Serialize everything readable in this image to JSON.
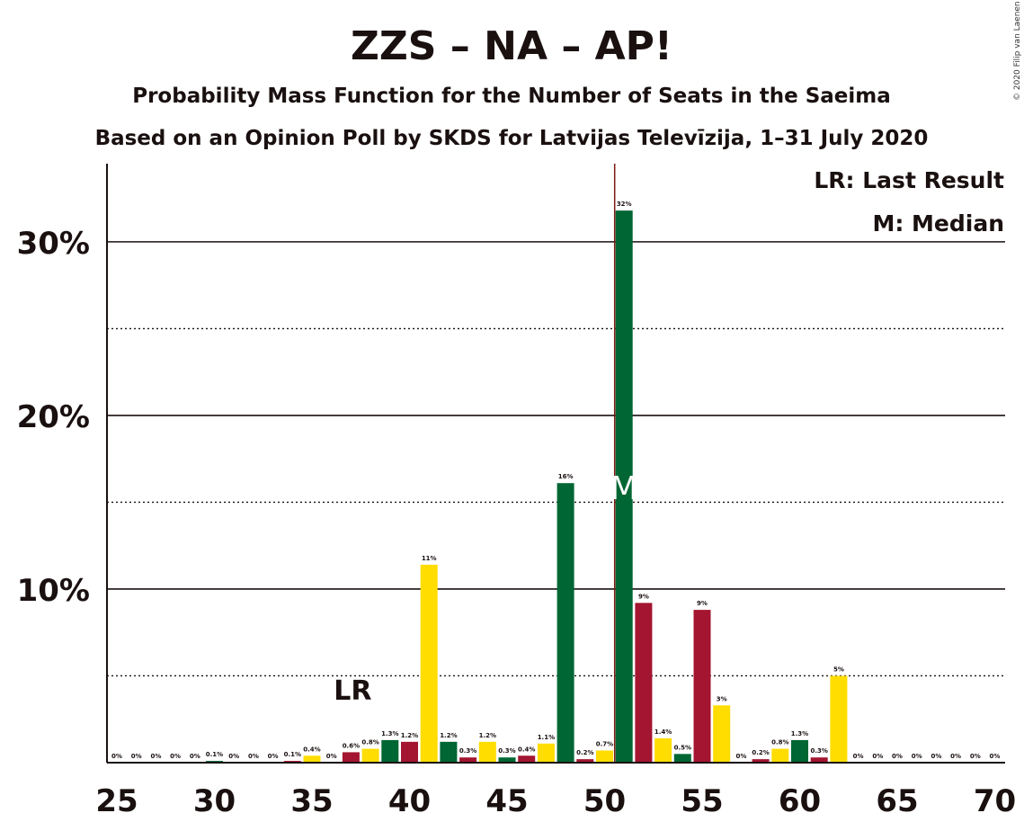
{
  "chart_data": {
    "type": "bar",
    "title": "ZZS – NA – AP!",
    "subtitle": "Probability Mass Function for the Number of Seats in the Saeima",
    "subtitle2": "Based on an Opinion Poll by SKDS for Latvijas Televīzija, 1–31 July 2020",
    "copyright": "© 2020 Filip van Laenen",
    "legend": [
      "LR: Last Result",
      "M: Median"
    ],
    "legend_position": "top-right",
    "lr_label": "LR",
    "last_result": 37,
    "median": 51,
    "median_marker": "M",
    "ylim": [
      0,
      34.5
    ],
    "yticks": [
      10,
      20,
      30
    ],
    "ytick_labels": [
      "10%",
      "20%",
      "30%"
    ],
    "dotted_lines": [
      5,
      15,
      25
    ],
    "xlim": [
      25,
      70
    ],
    "xticks": [
      25,
      30,
      35,
      40,
      45,
      50,
      55,
      60,
      65,
      70
    ],
    "colors": {
      "green": "#006633",
      "red": "#A31530",
      "yellow": "#FFDD00",
      "median_line": "#7A1A10"
    },
    "bars": [
      {
        "seats": 25,
        "value": 0,
        "label": "0%",
        "color": "green"
      },
      {
        "seats": 26,
        "value": 0,
        "label": "0%",
        "color": "red"
      },
      {
        "seats": 27,
        "value": 0,
        "label": "0%",
        "color": "yellow"
      },
      {
        "seats": 28,
        "value": 0,
        "label": "0%",
        "color": "green"
      },
      {
        "seats": 29,
        "value": 0,
        "label": "0%",
        "color": "red"
      },
      {
        "seats": 30,
        "value": 0.1,
        "label": "0.1%",
        "color": "green"
      },
      {
        "seats": 31,
        "value": 0,
        "label": "0%",
        "color": "red"
      },
      {
        "seats": 32,
        "value": 0,
        "label": "0%",
        "color": "yellow"
      },
      {
        "seats": 33,
        "value": 0,
        "label": "0%",
        "color": "green"
      },
      {
        "seats": 34,
        "value": 0.1,
        "label": "0.1%",
        "color": "red"
      },
      {
        "seats": 35,
        "value": 0.4,
        "label": "0.4%",
        "color": "yellow"
      },
      {
        "seats": 36,
        "value": 0,
        "label": "0%",
        "color": "green"
      },
      {
        "seats": 37,
        "value": 0.6,
        "label": "0.6%",
        "color": "red"
      },
      {
        "seats": 38,
        "value": 0.8,
        "label": "0.8%",
        "color": "yellow"
      },
      {
        "seats": 39,
        "value": 1.3,
        "label": "1.3%",
        "color": "green"
      },
      {
        "seats": 40,
        "value": 1.2,
        "label": "1.2%",
        "color": "red"
      },
      {
        "seats": 41,
        "value": 11.4,
        "label": "11%",
        "color": "yellow"
      },
      {
        "seats": 42,
        "value": 1.2,
        "label": "1.2%",
        "color": "green"
      },
      {
        "seats": 43,
        "value": 0.3,
        "label": "0.3%",
        "color": "red"
      },
      {
        "seats": 44,
        "value": 1.2,
        "label": "1.2%",
        "color": "yellow"
      },
      {
        "seats": 45,
        "value": 0.3,
        "label": "0.3%",
        "color": "green"
      },
      {
        "seats": 46,
        "value": 0.4,
        "label": "0.4%",
        "color": "red"
      },
      {
        "seats": 47,
        "value": 1.1,
        "label": "1.1%",
        "color": "yellow"
      },
      {
        "seats": 48,
        "value": 16.1,
        "label": "16%",
        "color": "green"
      },
      {
        "seats": 49,
        "value": 0.2,
        "label": "0.2%",
        "color": "red"
      },
      {
        "seats": 50,
        "value": 0.7,
        "label": "0.7%",
        "color": "yellow"
      },
      {
        "seats": 51,
        "value": 31.8,
        "label": "32%",
        "color": "green"
      },
      {
        "seats": 52,
        "value": 9.2,
        "label": "9%",
        "color": "red"
      },
      {
        "seats": 53,
        "value": 1.4,
        "label": "1.4%",
        "color": "yellow"
      },
      {
        "seats": 54,
        "value": 0.5,
        "label": "0.5%",
        "color": "green"
      },
      {
        "seats": 55,
        "value": 8.8,
        "label": "9%",
        "color": "red"
      },
      {
        "seats": 56,
        "value": 3.3,
        "label": "3%",
        "color": "yellow"
      },
      {
        "seats": 57,
        "value": 0,
        "label": "0%",
        "color": "green"
      },
      {
        "seats": 58,
        "value": 0.2,
        "label": "0.2%",
        "color": "red"
      },
      {
        "seats": 59,
        "value": 0.8,
        "label": "0.8%",
        "color": "yellow"
      },
      {
        "seats": 60,
        "value": 1.3,
        "label": "1.3%",
        "color": "green"
      },
      {
        "seats": 61,
        "value": 0.3,
        "label": "0.3%",
        "color": "red"
      },
      {
        "seats": 62,
        "value": 5.0,
        "label": "5%",
        "color": "yellow"
      },
      {
        "seats": 63,
        "value": 0,
        "label": "0%",
        "color": "green"
      },
      {
        "seats": 64,
        "value": 0,
        "label": "0%",
        "color": "red"
      },
      {
        "seats": 65,
        "value": 0,
        "label": "0%",
        "color": "yellow"
      },
      {
        "seats": 66,
        "value": 0,
        "label": "0%",
        "color": "green"
      },
      {
        "seats": 67,
        "value": 0,
        "label": "0%",
        "color": "red"
      },
      {
        "seats": 68,
        "value": 0,
        "label": "0%",
        "color": "yellow"
      },
      {
        "seats": 69,
        "value": 0,
        "label": "0%",
        "color": "green"
      },
      {
        "seats": 70,
        "value": 0,
        "label": "0%",
        "color": "red"
      }
    ]
  }
}
